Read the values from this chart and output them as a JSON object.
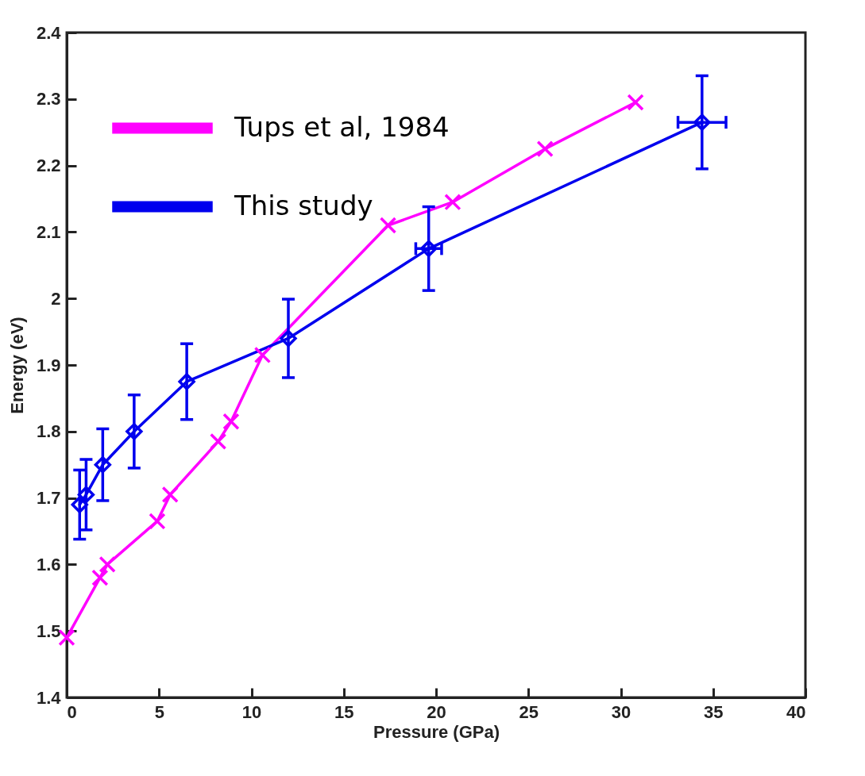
{
  "chart_data": {
    "type": "line",
    "xlabel": "Pressure (GPa)",
    "ylabel": "Energy (eV)",
    "xlim": [
      0,
      40
    ],
    "xticks": [
      0,
      5,
      10,
      15,
      20,
      25,
      30,
      35,
      40
    ],
    "ylim": [
      1.4,
      2.4
    ],
    "yticks": [
      1.4,
      1.5,
      1.6,
      1.7,
      1.8,
      1.9,
      2,
      2.1,
      2.2,
      2.3,
      2.4
    ],
    "grid": false,
    "legend": "top left",
    "line_style": "solid",
    "series": [
      {
        "name": "Tups et al, 1984",
        "color": "#ff00ff",
        "marker": "cross",
        "x": [
          0,
          1.8,
          2.2,
          4.9,
          5.6,
          8.2,
          8.9,
          10.6,
          17.4,
          20.9,
          25.9,
          30.8
        ],
        "values": [
          1.49,
          1.58,
          1.6,
          1.665,
          1.705,
          1.785,
          1.815,
          1.915,
          2.11,
          2.145,
          2.225,
          2.295
        ]
      },
      {
        "name": "This study",
        "color": "#0000ee",
        "marker": "diamond",
        "x": [
          0.7,
          1.05,
          1.95,
          3.65,
          6.5,
          12,
          19.6,
          34.4
        ],
        "values": [
          1.69,
          1.705,
          1.75,
          1.8,
          1.875,
          1.94,
          2.075,
          2.265
        ],
        "errors": [
          0.052,
          0.053,
          0.054,
          0.055,
          0.057,
          0.059,
          0.063,
          0.07
        ],
        "xerrors": [
          null,
          null,
          null,
          null,
          null,
          null,
          0.7,
          1.3
        ]
      }
    ]
  }
}
